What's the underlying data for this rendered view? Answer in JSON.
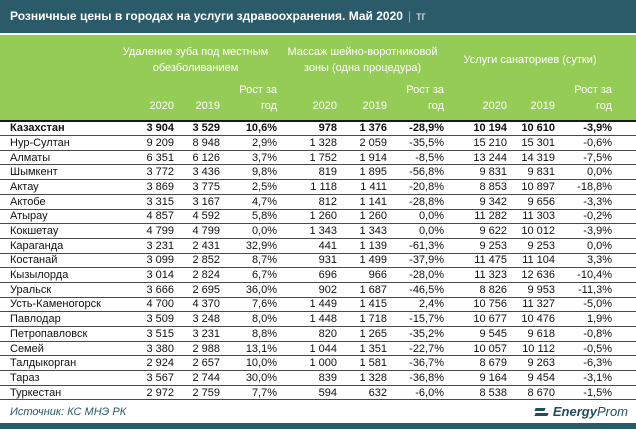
{
  "title": {
    "main": "Розничные цены в городах на услуги здравоохранения. Май 2020",
    "separator": "|",
    "unit": "тг"
  },
  "chart_data": {
    "type": "table",
    "title": "Розничные цены в городах на услуги здравоохранения. Май 2020 | тг",
    "column_groups": [
      "Удаление зуба под местным обезболиванием",
      "Массаж шейно-воротниковой зоны (одна процедура)",
      "Услуги санаториев (сутки)"
    ],
    "sub_columns": [
      "2020",
      "2019",
      "Рост за год"
    ],
    "rows": [
      {
        "city": "Казахстан",
        "bold": true,
        "values": [
          "3 904",
          "3 529",
          "10,6%",
          "978",
          "1 376",
          "-28,9%",
          "10 194",
          "10 610",
          "-3,9%"
        ]
      },
      {
        "city": "Нур-Султан",
        "values": [
          "9 209",
          "8 948",
          "2,9%",
          "1 328",
          "2 059",
          "-35,5%",
          "15 210",
          "15 301",
          "-0,6%"
        ]
      },
      {
        "city": "Алматы",
        "values": [
          "6 351",
          "6 126",
          "3,7%",
          "1 752",
          "1 914",
          "-8,5%",
          "13 244",
          "14 319",
          "-7,5%"
        ]
      },
      {
        "city": "Шымкент",
        "values": [
          "3 772",
          "3 436",
          "9,8%",
          "819",
          "1 895",
          "-56,8%",
          "9 831",
          "9 831",
          "0,0%"
        ]
      },
      {
        "city": "Актау",
        "values": [
          "3 869",
          "3 775",
          "2,5%",
          "1 118",
          "1 411",
          "-20,8%",
          "8 853",
          "10 897",
          "-18,8%"
        ]
      },
      {
        "city": "Актобе",
        "values": [
          "3 315",
          "3 167",
          "4,7%",
          "812",
          "1 141",
          "-28,8%",
          "9 342",
          "9 656",
          "-3,3%"
        ]
      },
      {
        "city": "Атырау",
        "values": [
          "4 857",
          "4 592",
          "5,8%",
          "1 260",
          "1 260",
          "0,0%",
          "11 282",
          "11 303",
          "-0,2%"
        ]
      },
      {
        "city": "Кокшетау",
        "values": [
          "4 799",
          "4 799",
          "0,0%",
          "1 343",
          "1 343",
          "0,0%",
          "9 622",
          "10 012",
          "-3,9%"
        ]
      },
      {
        "city": "Караганда",
        "values": [
          "3 231",
          "2 431",
          "32,9%",
          "441",
          "1 139",
          "-61,3%",
          "9 253",
          "9 253",
          "0,0%"
        ]
      },
      {
        "city": "Костанай",
        "values": [
          "3 099",
          "2 852",
          "8,7%",
          "931",
          "1 499",
          "-37,9%",
          "11 475",
          "11 104",
          "3,3%"
        ]
      },
      {
        "city": "Кызылорда",
        "values": [
          "3 014",
          "2 824",
          "6,7%",
          "696",
          "966",
          "-28,0%",
          "11 323",
          "12 636",
          "-10,4%"
        ]
      },
      {
        "city": "Уральск",
        "values": [
          "3 666",
          "2 695",
          "36,0%",
          "902",
          "1 687",
          "-46,5%",
          "8 826",
          "9 953",
          "-11,3%"
        ]
      },
      {
        "city": "Усть-Каменогорск",
        "values": [
          "4 700",
          "4 370",
          "7,6%",
          "1 449",
          "1 415",
          "2,4%",
          "10 756",
          "11 327",
          "-5,0%"
        ]
      },
      {
        "city": "Павлодар",
        "values": [
          "3 509",
          "3 248",
          "8,0%",
          "1 448",
          "1 718",
          "-15,7%",
          "10 677",
          "10 476",
          "1,9%"
        ]
      },
      {
        "city": "Петропавловск",
        "values": [
          "3 515",
          "3 231",
          "8,8%",
          "820",
          "1 265",
          "-35,2%",
          "9 545",
          "9 618",
          "-0,8%"
        ]
      },
      {
        "city": "Семей",
        "values": [
          "3 380",
          "2 988",
          "13,1%",
          "1 044",
          "1 351",
          "-22,7%",
          "10 057",
          "10 112",
          "-0,5%"
        ]
      },
      {
        "city": "Талдыкорган",
        "values": [
          "2 924",
          "2 657",
          "10,0%",
          "1 000",
          "1 581",
          "-36,7%",
          "8 679",
          "9 263",
          "-6,3%"
        ]
      },
      {
        "city": "Тараз",
        "values": [
          "3 567",
          "2 744",
          "30,0%",
          "839",
          "1 328",
          "-36,8%",
          "9 164",
          "9 454",
          "-3,1%"
        ]
      },
      {
        "city": "Туркестан",
        "values": [
          "2 972",
          "2 759",
          "7,7%",
          "594",
          "632",
          "-6,0%",
          "8 538",
          "8 670",
          "-1,5%"
        ]
      }
    ]
  },
  "footer": {
    "source": "Источник: КС МНЭ РК",
    "logo": {
      "bold": "Energy",
      "regular": "Prom"
    }
  },
  "colors": {
    "title_bar": "#2b5a68",
    "header_green": "#95cc55",
    "logo_teal": "#1d4f5e",
    "row_line": "#4a4a4a"
  }
}
